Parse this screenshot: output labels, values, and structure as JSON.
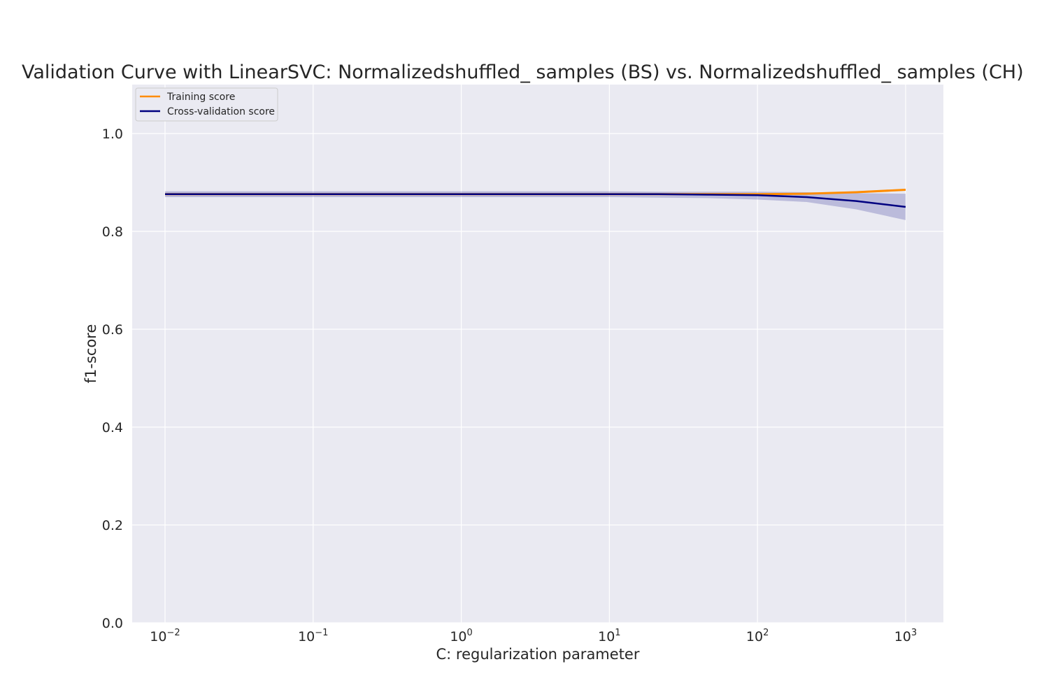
{
  "chart_data": {
    "type": "line",
    "title": "Validation Curve with LinearSVC: Normalizedshuffled_ samples (BS) vs. Normalizedshuffled_ samples (CH)",
    "xlabel": "C: regularization parameter",
    "ylabel": "f1-score",
    "x_scale": "log",
    "xlim": [
      0.006,
      1800
    ],
    "ylim": [
      0.0,
      1.1
    ],
    "x_ticks": [
      {
        "value": 0.01,
        "base": "10",
        "exp": "−2"
      },
      {
        "value": 0.1,
        "base": "10",
        "exp": "−1"
      },
      {
        "value": 1,
        "base": "10",
        "exp": "0"
      },
      {
        "value": 10,
        "base": "10",
        "exp": "1"
      },
      {
        "value": 100,
        "base": "10",
        "exp": "2"
      },
      {
        "value": 1000,
        "base": "10",
        "exp": "3"
      }
    ],
    "y_ticks": [
      {
        "value": 0.0,
        "label": "0.0"
      },
      {
        "value": 0.2,
        "label": "0.2"
      },
      {
        "value": 0.4,
        "label": "0.4"
      },
      {
        "value": 0.6,
        "label": "0.6"
      },
      {
        "value": 0.8,
        "label": "0.8"
      },
      {
        "value": 1.0,
        "label": "1.0"
      }
    ],
    "grid": true,
    "legend_position": "top-left",
    "x": [
      0.01,
      0.0215,
      0.0464,
      0.1,
      0.215,
      0.464,
      1,
      2.15,
      4.64,
      10,
      21.5,
      46.4,
      100,
      215,
      464,
      1000
    ],
    "series": [
      {
        "name": "Training score",
        "color": "#ff8c00",
        "values": [
          0.876,
          0.876,
          0.876,
          0.876,
          0.876,
          0.876,
          0.876,
          0.876,
          0.876,
          0.876,
          0.876,
          0.876,
          0.876,
          0.877,
          0.88,
          0.885
        ],
        "band_lower": [
          0.875,
          0.875,
          0.875,
          0.875,
          0.875,
          0.875,
          0.875,
          0.875,
          0.875,
          0.875,
          0.875,
          0.875,
          0.875,
          0.876,
          0.878,
          0.883
        ],
        "band_upper": [
          0.877,
          0.877,
          0.877,
          0.877,
          0.877,
          0.877,
          0.877,
          0.877,
          0.877,
          0.877,
          0.877,
          0.877,
          0.877,
          0.879,
          0.882,
          0.887
        ]
      },
      {
        "name": "Cross-validation score",
        "color": "#000080",
        "values": [
          0.876,
          0.876,
          0.876,
          0.876,
          0.876,
          0.876,
          0.876,
          0.876,
          0.876,
          0.876,
          0.876,
          0.875,
          0.874,
          0.87,
          0.862,
          0.85
        ],
        "band_lower": [
          0.87,
          0.87,
          0.87,
          0.87,
          0.87,
          0.87,
          0.87,
          0.87,
          0.87,
          0.87,
          0.869,
          0.868,
          0.865,
          0.86,
          0.845,
          0.823
        ],
        "band_upper": [
          0.882,
          0.882,
          0.882,
          0.882,
          0.882,
          0.882,
          0.882,
          0.882,
          0.882,
          0.882,
          0.881,
          0.881,
          0.881,
          0.88,
          0.878,
          0.877
        ]
      }
    ]
  }
}
